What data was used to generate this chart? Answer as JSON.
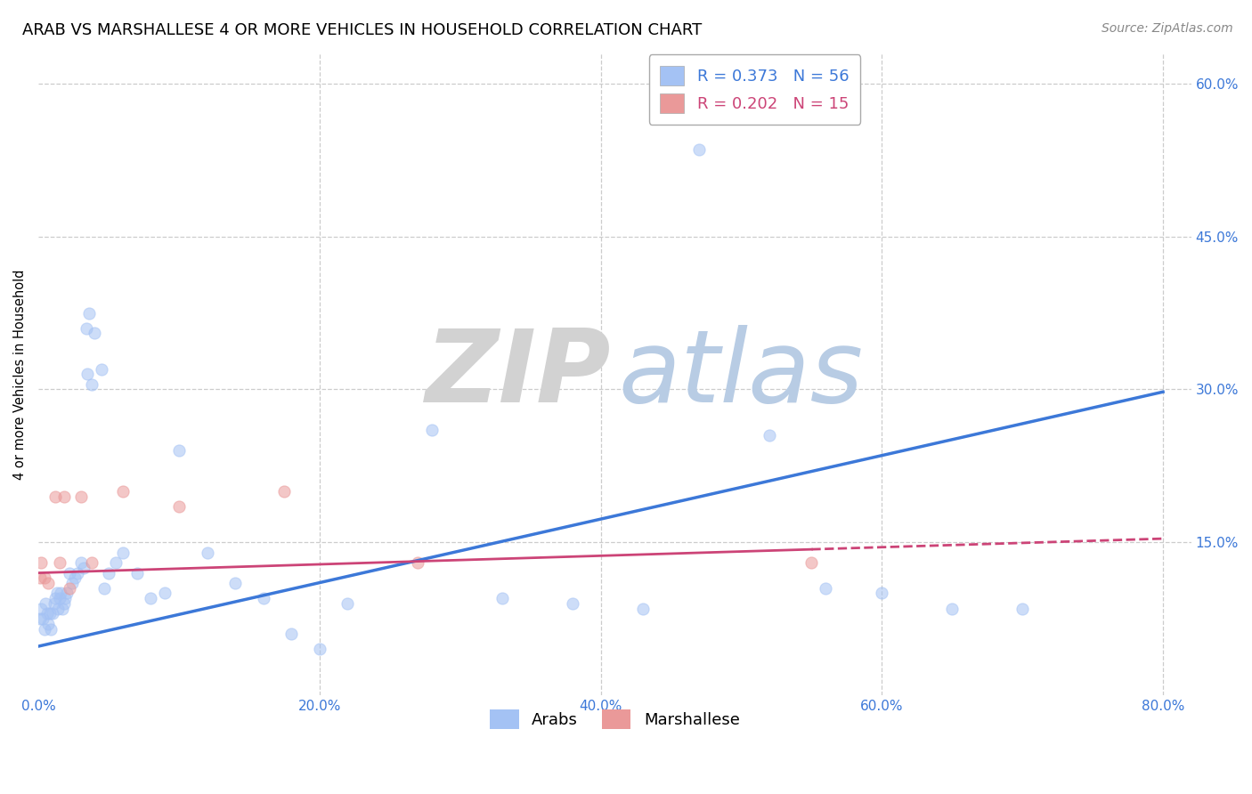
{
  "title": "ARAB VS MARSHALLESE 4 OR MORE VEHICLES IN HOUSEHOLD CORRELATION CHART",
  "source": "Source: ZipAtlas.com",
  "ylabel": "4 or more Vehicles in Household",
  "xlim": [
    0.0,
    0.82
  ],
  "ylim": [
    0.0,
    0.63
  ],
  "xticks": [
    0.0,
    0.2,
    0.4,
    0.6,
    0.8
  ],
  "yticks": [
    0.15,
    0.3,
    0.45,
    0.6
  ],
  "ytick_labels": [
    "15.0%",
    "30.0%",
    "45.0%",
    "60.0%"
  ],
  "xtick_labels": [
    "0.0%",
    "20.0%",
    "40.0%",
    "60.0%",
    "80.0%"
  ],
  "arab_R": "0.373",
  "arab_N": "56",
  "marsh_R": "0.202",
  "marsh_N": "15",
  "arab_color": "#a4c2f4",
  "marsh_color": "#ea9999",
  "arab_line_color": "#3c78d8",
  "marsh_line_color": "#cc4477",
  "background_color": "#ffffff",
  "grid_color": "#cccccc",
  "arab_x": [
    0.001,
    0.002,
    0.003,
    0.004,
    0.005,
    0.006,
    0.007,
    0.008,
    0.009,
    0.01,
    0.011,
    0.012,
    0.013,
    0.014,
    0.015,
    0.016,
    0.017,
    0.018,
    0.019,
    0.02,
    0.022,
    0.024,
    0.026,
    0.028,
    0.03,
    0.032,
    0.034,
    0.036,
    0.04,
    0.045,
    0.05,
    0.055,
    0.06,
    0.07,
    0.08,
    0.09,
    0.1,
    0.12,
    0.14,
    0.16,
    0.18,
    0.2,
    0.22,
    0.28,
    0.33,
    0.38,
    0.43,
    0.47,
    0.52,
    0.56,
    0.6,
    0.65,
    0.7,
    0.035,
    0.038,
    0.047
  ],
  "arab_y": [
    0.075,
    0.085,
    0.075,
    0.065,
    0.09,
    0.08,
    0.07,
    0.08,
    0.065,
    0.08,
    0.09,
    0.095,
    0.1,
    0.085,
    0.095,
    0.1,
    0.085,
    0.09,
    0.095,
    0.1,
    0.12,
    0.11,
    0.115,
    0.12,
    0.13,
    0.125,
    0.36,
    0.375,
    0.355,
    0.32,
    0.12,
    0.13,
    0.14,
    0.12,
    0.095,
    0.1,
    0.24,
    0.14,
    0.11,
    0.095,
    0.06,
    0.045,
    0.09,
    0.26,
    0.095,
    0.09,
    0.085,
    0.535,
    0.255,
    0.105,
    0.1,
    0.085,
    0.085,
    0.315,
    0.305,
    0.105
  ],
  "marsh_x": [
    0.001,
    0.002,
    0.004,
    0.007,
    0.012,
    0.015,
    0.018,
    0.022,
    0.03,
    0.038,
    0.06,
    0.1,
    0.175,
    0.27,
    0.55
  ],
  "marsh_y": [
    0.115,
    0.13,
    0.115,
    0.11,
    0.195,
    0.13,
    0.195,
    0.105,
    0.195,
    0.13,
    0.2,
    0.185,
    0.2,
    0.13,
    0.13
  ],
  "arab_intercept": 0.048,
  "arab_slope": 0.312,
  "marsh_intercept": 0.12,
  "marsh_slope": 0.042,
  "marsh_solid_max": 0.55,
  "title_fontsize": 13,
  "axis_label_fontsize": 10.5,
  "tick_fontsize": 11,
  "legend_fontsize": 13,
  "source_fontsize": 10,
  "marker_size": 90,
  "marker_alpha": 0.55,
  "marker_lw": 0.8
}
